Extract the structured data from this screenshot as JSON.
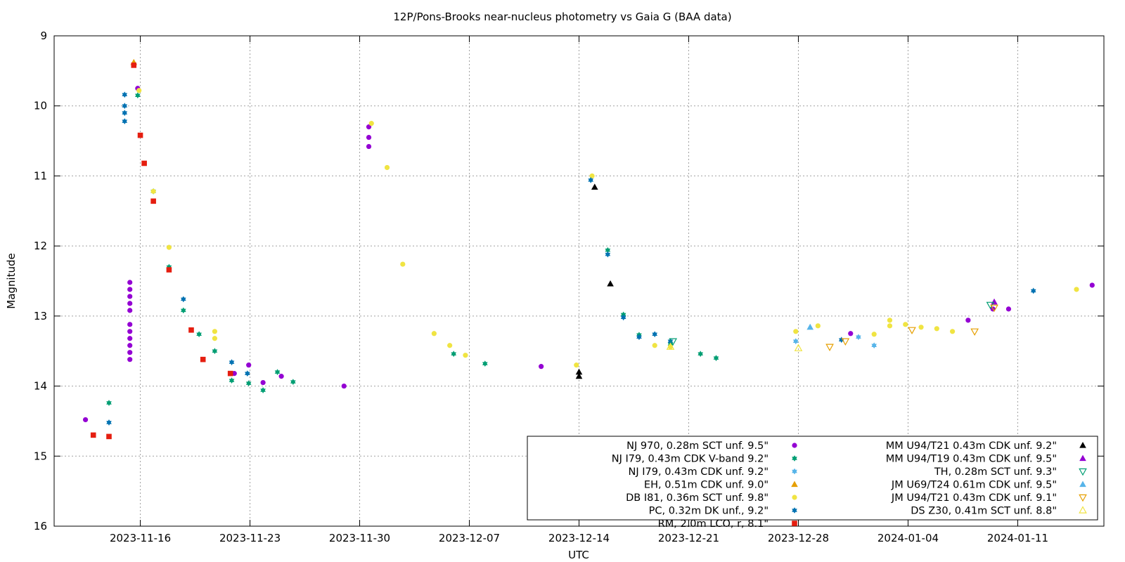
{
  "chart_data": {
    "type": "scatter",
    "title": "12P/Pons-Brooks near-nucleus photometry vs Gaia G (BAA data)",
    "xlabel": "UTC",
    "ylabel": "Magnitude",
    "xlim": [
      "2023-11-10T12:00",
      "2024-01-16T12:00"
    ],
    "ylim": [
      9,
      16
    ],
    "y_inverted": true,
    "grid": true,
    "legend_position": "bottom-right",
    "x_ticks": [
      "2023-11-16",
      "2023-11-23",
      "2023-11-30",
      "2023-12-07",
      "2023-12-14",
      "2023-12-21",
      "2023-12-28",
      "2024-01-04",
      "2024-01-11"
    ],
    "y_ticks": [
      9,
      10,
      11,
      12,
      13,
      14,
      15,
      16
    ],
    "series": [
      {
        "name": "NJ 970, 0.28m SCT unf. 9.5\"",
        "color": "#9400d3",
        "marker": "circle",
        "points": [
          [
            "2023-11-12T12:00",
            14.48
          ],
          [
            "2023-11-15T08:00",
            12.52
          ],
          [
            "2023-11-15T08:00",
            12.62
          ],
          [
            "2023-11-15T08:00",
            12.72
          ],
          [
            "2023-11-15T08:00",
            12.82
          ],
          [
            "2023-11-15T08:00",
            12.92
          ],
          [
            "2023-11-15T08:00",
            13.12
          ],
          [
            "2023-11-15T08:00",
            13.22
          ],
          [
            "2023-11-15T08:00",
            13.32
          ],
          [
            "2023-11-15T08:00",
            13.42
          ],
          [
            "2023-11-15T08:00",
            13.52
          ],
          [
            "2023-11-15T08:00",
            13.62
          ],
          [
            "2023-11-15T20:00",
            9.75
          ],
          [
            "2023-11-22T00:00",
            13.82
          ],
          [
            "2023-11-22T22:00",
            13.7
          ],
          [
            "2023-11-23T20:00",
            13.95
          ],
          [
            "2023-11-25T00:00",
            13.86
          ],
          [
            "2023-11-29T00:00",
            14.0
          ],
          [
            "2023-11-30T14:00",
            10.3
          ],
          [
            "2023-11-30T14:00",
            10.45
          ],
          [
            "2023-11-30T14:00",
            10.58
          ],
          [
            "2023-12-11T14:00",
            13.72
          ],
          [
            "2023-12-31T08:00",
            13.25
          ],
          [
            "2024-01-07T20:00",
            13.06
          ],
          [
            "2024-01-09T10:00",
            12.9
          ],
          [
            "2024-01-10T10:00",
            12.9
          ],
          [
            "2024-01-15T18:00",
            12.56
          ]
        ]
      },
      {
        "name": "NJ I79, 0.43m CDK V-band 9.2\"",
        "color": "#009e73",
        "marker": "star",
        "points": [
          [
            "2023-11-14T00:00",
            14.24
          ],
          [
            "2023-11-15T20:00",
            9.85
          ],
          [
            "2023-11-16T20:00",
            11.22
          ],
          [
            "2023-11-17T20:00",
            12.3
          ],
          [
            "2023-11-18T18:00",
            12.92
          ],
          [
            "2023-11-19T18:00",
            13.26
          ],
          [
            "2023-11-20T18:00",
            13.5
          ],
          [
            "2023-11-21T20:00",
            13.92
          ],
          [
            "2023-11-22T22:00",
            13.96
          ],
          [
            "2023-11-23T20:00",
            14.06
          ],
          [
            "2023-11-24T18:00",
            13.8
          ],
          [
            "2023-11-25T18:00",
            13.94
          ],
          [
            "2023-12-06T00:00",
            13.54
          ],
          [
            "2023-12-08T00:00",
            13.68
          ],
          [
            "2023-12-15T20:00",
            12.06
          ],
          [
            "2023-12-16T20:00",
            12.98
          ],
          [
            "2023-12-17T20:00",
            13.27
          ],
          [
            "2023-12-19T20:00",
            13.4
          ],
          [
            "2023-12-21T18:00",
            13.54
          ],
          [
            "2023-12-22T18:00",
            13.6
          ]
        ]
      },
      {
        "name": "NJ I79, 0.43m CDK unf. 9.2\"",
        "color": "#56b4e9",
        "marker": "star",
        "points": [
          [
            "2023-12-27T20:00",
            13.36
          ],
          [
            "2023-12-31T20:00",
            13.3
          ],
          [
            "2024-01-01T20:00",
            13.42
          ]
        ]
      },
      {
        "name": "EH, 0.51m CDK unf. 9.0\"",
        "color": "#e69f00",
        "marker": "triangle-up",
        "points": [
          [
            "2023-11-15T14:00",
            9.38
          ]
        ]
      },
      {
        "name": "DB I81, 0.36m SCT unf. 9.8\"",
        "color": "#f0e442",
        "marker": "circle",
        "points": [
          [
            "2023-11-15T22:00",
            9.78
          ],
          [
            "2023-11-16T20:00",
            11.22
          ],
          [
            "2023-11-17T20:00",
            12.02
          ],
          [
            "2023-11-20T18:00",
            13.22
          ],
          [
            "2023-11-20T18:00",
            13.32
          ],
          [
            "2023-11-30T18:00",
            10.25
          ],
          [
            "2023-12-01T18:00",
            10.88
          ],
          [
            "2023-12-02T18:00",
            12.26
          ],
          [
            "2023-12-04T18:00",
            13.25
          ],
          [
            "2023-12-05T18:00",
            13.42
          ],
          [
            "2023-12-06T18:00",
            13.56
          ],
          [
            "2023-12-13T20:00",
            13.7
          ],
          [
            "2023-12-14T20:00",
            11.0
          ],
          [
            "2023-12-18T20:00",
            13.42
          ],
          [
            "2023-12-19T20:00",
            13.44
          ],
          [
            "2023-12-27T20:00",
            13.22
          ],
          [
            "2023-12-29T06:00",
            13.14
          ],
          [
            "2024-01-01T20:00",
            13.26
          ],
          [
            "2024-01-02T20:00",
            13.06
          ],
          [
            "2024-01-02T20:00",
            13.14
          ],
          [
            "2024-01-03T20:00",
            13.12
          ],
          [
            "2024-01-04T20:00",
            13.16
          ],
          [
            "2024-01-05T20:00",
            13.18
          ],
          [
            "2024-01-06T20:00",
            13.22
          ],
          [
            "2024-01-14T18:00",
            12.62
          ]
        ]
      },
      {
        "name": "PC, 0.32m DK unf., 9.2\"",
        "color": "#0072b2",
        "marker": "star",
        "points": [
          [
            "2023-11-14T00:00",
            14.52
          ],
          [
            "2023-11-15T00:00",
            9.84
          ],
          [
            "2023-11-15T00:00",
            10.0
          ],
          [
            "2023-11-15T00:00",
            10.1
          ],
          [
            "2023-11-15T00:00",
            10.22
          ],
          [
            "2023-11-18T18:00",
            12.76
          ],
          [
            "2023-11-21T20:00",
            13.66
          ],
          [
            "2023-11-22T20:00",
            13.82
          ],
          [
            "2023-12-14T18:00",
            11.06
          ],
          [
            "2023-12-15T20:00",
            12.12
          ],
          [
            "2023-12-16T20:00",
            13.02
          ],
          [
            "2023-12-17T20:00",
            13.3
          ],
          [
            "2023-12-18T20:00",
            13.26
          ],
          [
            "2023-12-19T20:00",
            13.36
          ],
          [
            "2023-12-30T18:00",
            13.34
          ],
          [
            "2024-01-12T00:00",
            12.64
          ]
        ]
      },
      {
        "name": "RM, 2.0m LCO, r, 8.1\"",
        "color": "#e51e10",
        "marker": "square",
        "points": [
          [
            "2023-11-13T00:00",
            14.7
          ],
          [
            "2023-11-14T00:00",
            14.72
          ],
          [
            "2023-11-15T14:00",
            9.42
          ],
          [
            "2023-11-16T00:00",
            10.42
          ],
          [
            "2023-11-16T06:00",
            10.82
          ],
          [
            "2023-11-16T20:00",
            11.36
          ],
          [
            "2023-11-17T20:00",
            12.34
          ],
          [
            "2023-11-19T06:00",
            13.2
          ],
          [
            "2023-11-20T00:00",
            13.62
          ],
          [
            "2023-11-21T18:00",
            13.82
          ]
        ]
      },
      {
        "name": "MM U94/T21 0.43m CDK unf. 9.2\"",
        "color": "#000000",
        "marker": "triangle-up",
        "points": [
          [
            "2023-12-14T00:00",
            13.8
          ],
          [
            "2023-12-14T00:00",
            13.86
          ],
          [
            "2023-12-15T00:00",
            11.16
          ],
          [
            "2023-12-16T00:00",
            12.54
          ]
        ]
      },
      {
        "name": "MM U94/T19 0.43m CDK unf. 9.5\"",
        "color": "#9400d3",
        "marker": "triangle-up",
        "points": [
          [
            "2024-01-09T12:00",
            12.8
          ]
        ]
      },
      {
        "name": "TH, 0.28m SCT unf. 9.3\"",
        "color": "#009e73",
        "marker": "triangle-down",
        "points": [
          [
            "2023-12-20T00:00",
            13.36
          ],
          [
            "2024-01-09T06:00",
            12.84
          ]
        ]
      },
      {
        "name": "JM U69/T24 0.61m CDK unf. 9.5\"",
        "color": "#56b4e9",
        "marker": "triangle-up",
        "points": [
          [
            "2023-12-28T18:00",
            13.16
          ]
        ]
      },
      {
        "name": "JM U94/T21 0.43m CDK unf. 9.1\"",
        "color": "#e69f00",
        "marker": "triangle-down",
        "points": [
          [
            "2023-12-30T00:00",
            13.44
          ],
          [
            "2023-12-31T00:00",
            13.36
          ],
          [
            "2024-01-04T06:00",
            13.2
          ],
          [
            "2024-01-08T06:00",
            13.22
          ],
          [
            "2024-01-09T12:00",
            12.88
          ]
        ]
      },
      {
        "name": "DS Z30, 0.41m SCT unf. 8.8\"",
        "color": "#f0e442",
        "marker": "triangle-up-open",
        "points": [
          [
            "2023-12-19T20:00",
            13.44
          ],
          [
            "2023-12-28T00:00",
            13.46
          ]
        ]
      }
    ]
  }
}
